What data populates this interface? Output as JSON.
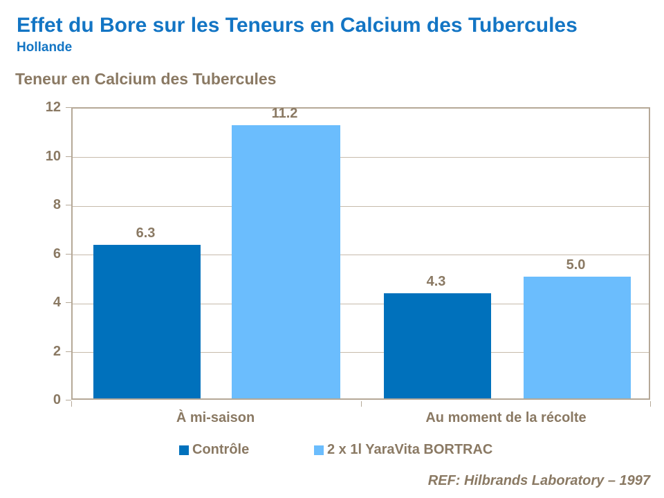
{
  "page": {
    "title": "Effet du Bore sur les Teneurs en Calcium des Tubercules",
    "subtitle": "Hollande",
    "reference": "REF: Hilbrands Laboratory – 1997"
  },
  "chart_data": {
    "type": "bar",
    "title": "Teneur en Calcium des Tubercules",
    "categories": [
      "À mi-saison",
      "Au moment de la récolte"
    ],
    "series": [
      {
        "name": "Contrôle",
        "color": "#0071BC",
        "values": [
          6.3,
          4.3
        ]
      },
      {
        "name": "2 x 1l YaraVita BORTRAC",
        "color": "#6BBDFD",
        "values": [
          11.2,
          5.0
        ]
      }
    ],
    "ylim": [
      0,
      12
    ],
    "yticks": [
      0,
      2,
      4,
      6,
      8,
      10,
      12
    ],
    "value_label_decimals": 1,
    "grid": "horizontal",
    "legend_position": "bottom"
  },
  "colors": {
    "title_blue": "#1375C4",
    "chart_text": "#8A7963",
    "axis_border": "#B5A897",
    "gridline": "#C6BAAB",
    "background": "#FFFFFF"
  }
}
